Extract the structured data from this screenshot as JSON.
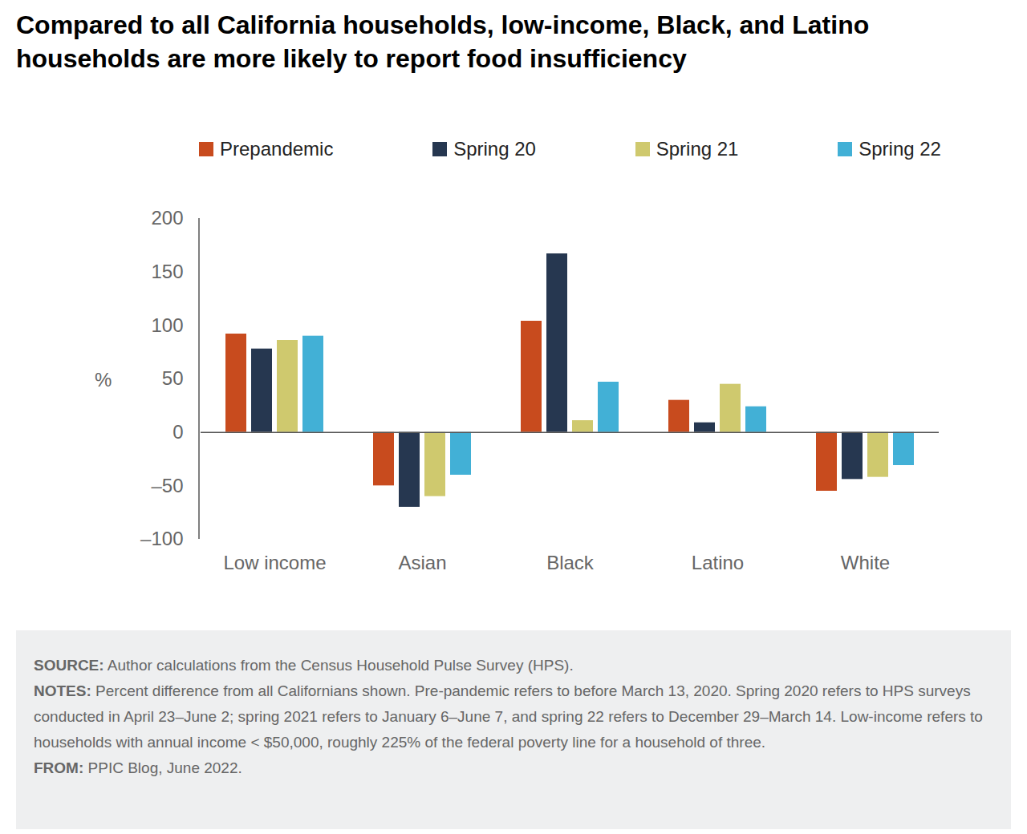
{
  "chart_data": {
    "type": "bar",
    "title": "Compared to all California households, low-income, Black, and Latino households are more likely to report food insufficiency",
    "y_label": "%",
    "categories": [
      "Low income",
      "Asian",
      "Black",
      "Latino",
      "White"
    ],
    "series": [
      {
        "name": "Prepandemic",
        "color": "#c84b1e",
        "values": [
          92,
          -50,
          104,
          30,
          -55
        ]
      },
      {
        "name": "Spring 20",
        "color": "#263750",
        "values": [
          78,
          -70,
          167,
          9,
          -44
        ]
      },
      {
        "name": "Spring 21",
        "color": "#cfc96e",
        "values": [
          86,
          -60,
          11,
          45,
          -42
        ]
      },
      {
        "name": "Spring 22",
        "color": "#42b0d6",
        "values": [
          90,
          -40,
          47,
          24,
          -31
        ]
      }
    ],
    "ylim": [
      -100,
      200
    ],
    "yticks": [
      {
        "value": -100,
        "label": "–100"
      },
      {
        "value": -50,
        "label": "–50"
      },
      0,
      50,
      100,
      150,
      200
    ],
    "legend": "top",
    "source": {
      "label": "SOURCE:",
      "text": "Author calculations from the Census Household Pulse Survey (HPS)."
    },
    "notes": {
      "label": "NOTES:",
      "text": "Percent difference from all Californians shown. Pre-pandemic refers to before March 13, 2020. Spring 2020 refers to HPS surveys conducted in April 23–June 2; spring 2021 refers to January 6–June 7, and spring 22 refers to December 29–March 14. Low-income refers to households with annual income < $50,000, roughly 225% of the federal poverty line for a household of three."
    },
    "from": {
      "label": "FROM:",
      "text": "PPIC Blog, June 2022."
    }
  }
}
